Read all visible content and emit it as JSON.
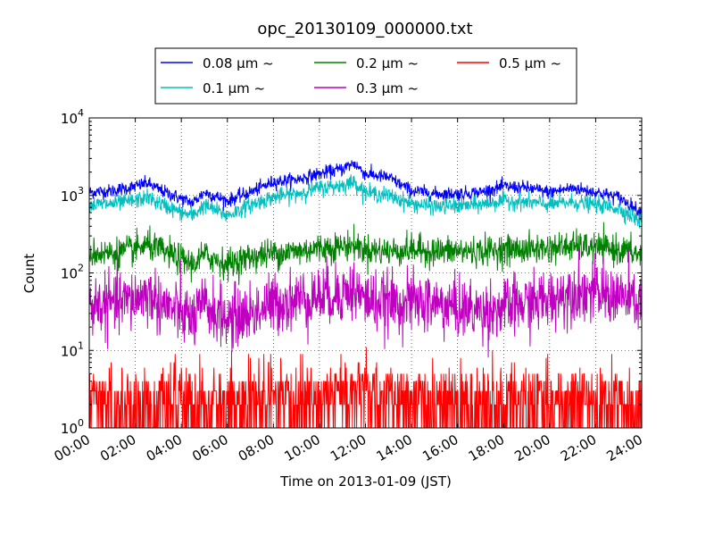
{
  "chart_data": {
    "type": "line",
    "title": "opc_20130109_000000.txt",
    "xlabel": "Time on 2013-01-09 (JST)",
    "ylabel": "Count",
    "y_scale": "log",
    "ylim": [
      1,
      10000
    ],
    "xlim": [
      "00:00",
      "24:00"
    ],
    "x_unit": "hour of day",
    "x_ticks": [
      "00:00",
      "02:00",
      "04:00",
      "06:00",
      "08:00",
      "10:00",
      "12:00",
      "14:00",
      "16:00",
      "18:00",
      "20:00",
      "22:00",
      "24:00"
    ],
    "y_ticks": [
      {
        "base": "10",
        "exp": "0"
      },
      {
        "base": "10",
        "exp": "1"
      },
      {
        "base": "10",
        "exp": "2"
      },
      {
        "base": "10",
        "exp": "3"
      },
      {
        "base": "10",
        "exp": "4"
      }
    ],
    "grid": true,
    "legend_position": "top-center",
    "x": [
      0,
      1,
      2,
      2.5,
      3,
      4,
      4.5,
      5,
      6,
      7,
      8,
      9,
      10,
      11,
      11.5,
      12,
      13,
      14,
      15,
      16,
      17,
      18,
      19,
      20,
      21,
      22,
      23,
      24
    ],
    "series": [
      {
        "name": "0.08 μm ~",
        "color": "#0000ff",
        "noise": 0.1,
        "values": [
          1100,
          1150,
          1300,
          1450,
          1200,
          900,
          800,
          1100,
          850,
          1100,
          1500,
          1600,
          1900,
          2200,
          2600,
          1900,
          1700,
          1150,
          1050,
          1050,
          1100,
          1300,
          1250,
          1100,
          1250,
          1100,
          950,
          600
        ]
      },
      {
        "name": "0.1 μm ~",
        "color": "#00c0c0",
        "noise": 0.12,
        "values": [
          750,
          780,
          850,
          950,
          800,
          600,
          550,
          750,
          550,
          750,
          950,
          1050,
          1250,
          1350,
          1500,
          1100,
          1000,
          780,
          720,
          730,
          760,
          850,
          820,
          760,
          820,
          760,
          680,
          450
        ]
      },
      {
        "name": "0.2 μm ~",
        "color": "#008000",
        "noise": 0.22,
        "values": [
          180,
          180,
          200,
          230,
          200,
          150,
          130,
          170,
          130,
          160,
          180,
          190,
          210,
          220,
          230,
          200,
          190,
          200,
          190,
          190,
          190,
          200,
          200,
          210,
          220,
          210,
          200,
          170
        ]
      },
      {
        "name": "0.3 μm ~",
        "color": "#c000c0",
        "noise": 0.45,
        "values": [
          38,
          40,
          45,
          55,
          42,
          30,
          25,
          38,
          25,
          30,
          40,
          45,
          50,
          55,
          60,
          45,
          40,
          42,
          40,
          35,
          32,
          35,
          40,
          45,
          60,
          55,
          50,
          40
        ]
      },
      {
        "name": "0.5 μm ~",
        "color": "#ff0000",
        "noise": 1.0,
        "values": [
          2,
          2,
          2,
          2,
          2,
          2,
          2,
          2,
          2,
          2,
          2,
          2,
          2.5,
          3,
          3,
          3,
          2.5,
          2,
          2,
          2,
          2,
          2,
          2,
          2,
          2.5,
          2,
          2,
          2
        ]
      }
    ]
  }
}
